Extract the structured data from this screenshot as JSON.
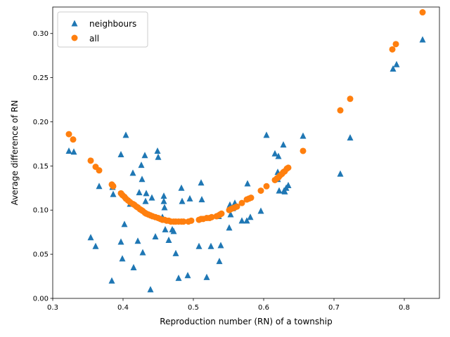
{
  "chart_data": {
    "type": "scatter",
    "title": "",
    "xlabel": "Reproduction number (RN) of a township",
    "ylabel": "Average difference of RN",
    "xlim": [
      0.3,
      0.85
    ],
    "ylim": [
      0.0,
      0.33
    ],
    "x_ticks": [
      "0.3",
      "0.4",
      "0.5",
      "0.6",
      "0.7",
      "0.8"
    ],
    "x_tick_values": [
      0.3,
      0.4,
      0.5,
      0.6,
      0.7,
      0.8
    ],
    "y_ticks": [
      "0.00",
      "0.05",
      "0.10",
      "0.15",
      "0.20",
      "0.25",
      "0.30"
    ],
    "y_tick_values": [
      0.0,
      0.05,
      0.1,
      0.15,
      0.2,
      0.25,
      0.3
    ],
    "grid": false,
    "legend_position": "upper-left",
    "series": [
      {
        "name": "neighbours",
        "marker": "triangle",
        "color": "#1f77b4",
        "points": [
          [
            0.323,
            0.167
          ],
          [
            0.33,
            0.166
          ],
          [
            0.354,
            0.069
          ],
          [
            0.361,
            0.059
          ],
          [
            0.366,
            0.127
          ],
          [
            0.384,
            0.02
          ],
          [
            0.385,
            0.126
          ],
          [
            0.386,
            0.118
          ],
          [
            0.397,
            0.163
          ],
          [
            0.397,
            0.064
          ],
          [
            0.399,
            0.045
          ],
          [
            0.402,
            0.084
          ],
          [
            0.404,
            0.185
          ],
          [
            0.41,
            0.107
          ],
          [
            0.414,
            0.142
          ],
          [
            0.415,
            0.035
          ],
          [
            0.421,
            0.065
          ],
          [
            0.423,
            0.12
          ],
          [
            0.426,
            0.151
          ],
          [
            0.427,
            0.135
          ],
          [
            0.428,
            0.052
          ],
          [
            0.431,
            0.162
          ],
          [
            0.432,
            0.11
          ],
          [
            0.433,
            0.119
          ],
          [
            0.439,
            0.01
          ],
          [
            0.441,
            0.114
          ],
          [
            0.446,
            0.07
          ],
          [
            0.449,
            0.167
          ],
          [
            0.45,
            0.16
          ],
          [
            0.456,
            0.092
          ],
          [
            0.458,
            0.116
          ],
          [
            0.458,
            0.11
          ],
          [
            0.459,
            0.103
          ],
          [
            0.46,
            0.078
          ],
          [
            0.465,
            0.066
          ],
          [
            0.47,
            0.078
          ],
          [
            0.472,
            0.076
          ],
          [
            0.475,
            0.051
          ],
          [
            0.479,
            0.023
          ],
          [
            0.483,
            0.125
          ],
          [
            0.484,
            0.11
          ],
          [
            0.492,
            0.026
          ],
          [
            0.495,
            0.113
          ],
          [
            0.508,
            0.059
          ],
          [
            0.511,
            0.131
          ],
          [
            0.512,
            0.112
          ],
          [
            0.519,
            0.024
          ],
          [
            0.525,
            0.059
          ],
          [
            0.536,
            0.093
          ],
          [
            0.537,
            0.042
          ],
          [
            0.539,
            0.06
          ],
          [
            0.551,
            0.08
          ],
          [
            0.552,
            0.106
          ],
          [
            0.553,
            0.095
          ],
          [
            0.556,
            0.102
          ],
          [
            0.559,
            0.108
          ],
          [
            0.569,
            0.088
          ],
          [
            0.576,
            0.088
          ],
          [
            0.577,
            0.13
          ],
          [
            0.581,
            0.092
          ],
          [
            0.596,
            0.099
          ],
          [
            0.604,
            0.185
          ],
          [
            0.616,
            0.164
          ],
          [
            0.62,
            0.143
          ],
          [
            0.62,
            0.135
          ],
          [
            0.621,
            0.161
          ],
          [
            0.622,
            0.122
          ],
          [
            0.628,
            0.174
          ],
          [
            0.629,
            0.122
          ],
          [
            0.63,
            0.121
          ],
          [
            0.632,
            0.125
          ],
          [
            0.635,
            0.128
          ],
          [
            0.656,
            0.184
          ],
          [
            0.709,
            0.141
          ],
          [
            0.723,
            0.182
          ],
          [
            0.784,
            0.26
          ],
          [
            0.789,
            0.265
          ],
          [
            0.826,
            0.293
          ]
        ]
      },
      {
        "name": "all",
        "marker": "circle",
        "color": "#ff7f0e",
        "points": [
          [
            0.323,
            0.186
          ],
          [
            0.329,
            0.18
          ],
          [
            0.354,
            0.156
          ],
          [
            0.361,
            0.149
          ],
          [
            0.366,
            0.145
          ],
          [
            0.384,
            0.129
          ],
          [
            0.385,
            0.128
          ],
          [
            0.386,
            0.127
          ],
          [
            0.397,
            0.119
          ],
          [
            0.399,
            0.117
          ],
          [
            0.402,
            0.115
          ],
          [
            0.404,
            0.113
          ],
          [
            0.407,
            0.111
          ],
          [
            0.41,
            0.109
          ],
          [
            0.414,
            0.107
          ],
          [
            0.416,
            0.106
          ],
          [
            0.419,
            0.104
          ],
          [
            0.421,
            0.103
          ],
          [
            0.424,
            0.101
          ],
          [
            0.426,
            0.1
          ],
          [
            0.428,
            0.099
          ],
          [
            0.431,
            0.097
          ],
          [
            0.433,
            0.096
          ],
          [
            0.436,
            0.095
          ],
          [
            0.439,
            0.094
          ],
          [
            0.442,
            0.093
          ],
          [
            0.446,
            0.092
          ],
          [
            0.45,
            0.091
          ],
          [
            0.453,
            0.09
          ],
          [
            0.456,
            0.089
          ],
          [
            0.459,
            0.089
          ],
          [
            0.462,
            0.088
          ],
          [
            0.465,
            0.088
          ],
          [
            0.468,
            0.087
          ],
          [
            0.472,
            0.087
          ],
          [
            0.475,
            0.087
          ],
          [
            0.479,
            0.087
          ],
          [
            0.483,
            0.087
          ],
          [
            0.486,
            0.087
          ],
          [
            0.493,
            0.087
          ],
          [
            0.497,
            0.088
          ],
          [
            0.508,
            0.089
          ],
          [
            0.511,
            0.09
          ],
          [
            0.514,
            0.09
          ],
          [
            0.519,
            0.091
          ],
          [
            0.523,
            0.091
          ],
          [
            0.526,
            0.092
          ],
          [
            0.533,
            0.093
          ],
          [
            0.536,
            0.094
          ],
          [
            0.538,
            0.095
          ],
          [
            0.54,
            0.096
          ],
          [
            0.551,
            0.1
          ],
          [
            0.553,
            0.101
          ],
          [
            0.556,
            0.102
          ],
          [
            0.559,
            0.103
          ],
          [
            0.562,
            0.104
          ],
          [
            0.569,
            0.108
          ],
          [
            0.576,
            0.112
          ],
          [
            0.579,
            0.113
          ],
          [
            0.582,
            0.114
          ],
          [
            0.596,
            0.122
          ],
          [
            0.604,
            0.127
          ],
          [
            0.616,
            0.134
          ],
          [
            0.619,
            0.136
          ],
          [
            0.621,
            0.137
          ],
          [
            0.623,
            0.139
          ],
          [
            0.626,
            0.141
          ],
          [
            0.628,
            0.143
          ],
          [
            0.63,
            0.144
          ],
          [
            0.633,
            0.147
          ],
          [
            0.635,
            0.148
          ],
          [
            0.656,
            0.167
          ],
          [
            0.709,
            0.213
          ],
          [
            0.723,
            0.226
          ],
          [
            0.783,
            0.282
          ],
          [
            0.788,
            0.288
          ],
          [
            0.826,
            0.324
          ]
        ]
      }
    ]
  }
}
